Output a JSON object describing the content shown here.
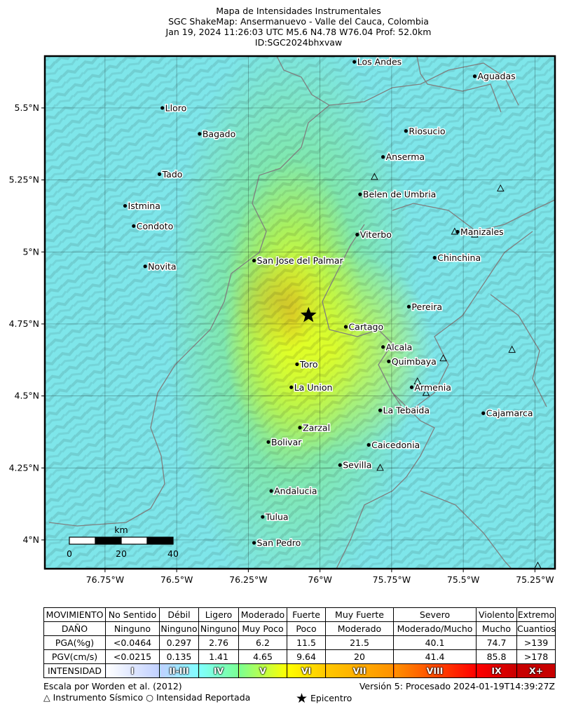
{
  "title": {
    "line1": "Mapa de Intensidades Instrumentales",
    "line2": "SGC ShakeMap: Ansermanuevo - Valle del Cauca, Colombia",
    "line3": "Jan 19, 2024 11:26:03 UTC M5.6 N4.78 W76.04 Prof: 52.0km",
    "line4": "ID:SGC2024bhxvaw"
  },
  "map": {
    "lat_ticks": [
      "5.5°N",
      "5.25°N",
      "5°N",
      "4.75°N",
      "4.5°N",
      "4.25°N",
      "4°N"
    ],
    "lon_ticks": [
      "76.75°W",
      "76.5°W",
      "76.25°W",
      "76°W",
      "75.75°W",
      "75.5°W",
      "75.25°W"
    ],
    "epicenter": {
      "name": "Epicentro",
      "lat": 4.78,
      "lon": -76.04
    },
    "cities": [
      {
        "name": "Los Andes",
        "lat": 5.66,
        "lon": -75.88
      },
      {
        "name": "Aguadas",
        "lat": 5.61,
        "lon": -75.46
      },
      {
        "name": "Lloro",
        "lat": 5.5,
        "lon": -76.55
      },
      {
        "name": "Riosucio",
        "lat": 5.42,
        "lon": -75.7
      },
      {
        "name": "Bagado",
        "lat": 5.41,
        "lon": -76.42
      },
      {
        "name": "Anserma",
        "lat": 5.33,
        "lon": -75.78
      },
      {
        "name": "Tado",
        "lat": 5.27,
        "lon": -76.56
      },
      {
        "name": "Belen de Umbria",
        "lat": 5.2,
        "lon": -75.86
      },
      {
        "name": "Istmina",
        "lat": 5.16,
        "lon": -76.68
      },
      {
        "name": "Condoto",
        "lat": 5.09,
        "lon": -76.65
      },
      {
        "name": "Viterbo",
        "lat": 5.06,
        "lon": -75.87
      },
      {
        "name": "Manizales",
        "lat": 5.07,
        "lon": -75.52
      },
      {
        "name": "Chinchina",
        "lat": 4.98,
        "lon": -75.6
      },
      {
        "name": "San Jose del Palmar",
        "lat": 4.97,
        "lon": -76.23
      },
      {
        "name": "Novita",
        "lat": 4.95,
        "lon": -76.61
      },
      {
        "name": "Pereira",
        "lat": 4.81,
        "lon": -75.69
      },
      {
        "name": "Cartago",
        "lat": 4.74,
        "lon": -75.91
      },
      {
        "name": "Alcala",
        "lat": 4.67,
        "lon": -75.78
      },
      {
        "name": "Quimbaya",
        "lat": 4.62,
        "lon": -75.76
      },
      {
        "name": "Toro",
        "lat": 4.61,
        "lon": -76.08
      },
      {
        "name": "Armenia",
        "lat": 4.53,
        "lon": -75.68
      },
      {
        "name": "La Union",
        "lat": 4.53,
        "lon": -76.1
      },
      {
        "name": "La Tebaida",
        "lat": 4.45,
        "lon": -75.79
      },
      {
        "name": "Cajamarca",
        "lat": 4.44,
        "lon": -75.43
      },
      {
        "name": "Zarzal",
        "lat": 4.39,
        "lon": -76.07
      },
      {
        "name": "Bolivar",
        "lat": 4.34,
        "lon": -76.18
      },
      {
        "name": "Caicedonia",
        "lat": 4.33,
        "lon": -75.83
      },
      {
        "name": "Sevilla",
        "lat": 4.26,
        "lon": -75.93
      },
      {
        "name": "Andalucia",
        "lat": 4.17,
        "lon": -76.17
      },
      {
        "name": "Tulua",
        "lat": 4.08,
        "lon": -76.2
      },
      {
        "name": "San Pedro",
        "lat": 3.99,
        "lon": -76.23
      }
    ],
    "stations": [
      {
        "lat": 5.26,
        "lon": -75.81
      },
      {
        "lat": 5.22,
        "lon": -75.37
      },
      {
        "lat": 5.07,
        "lon": -75.53
      },
      {
        "lat": 5.06,
        "lon": -75.46
      },
      {
        "lat": 4.66,
        "lon": -75.33
      },
      {
        "lat": 4.63,
        "lon": -75.57
      },
      {
        "lat": 4.55,
        "lon": -75.66
      },
      {
        "lat": 4.51,
        "lon": -75.63
      },
      {
        "lat": 4.25,
        "lon": -75.79
      },
      {
        "lat": 3.91,
        "lon": -75.24
      }
    ],
    "scalebar": {
      "unit": "km",
      "labels": [
        "0",
        "20",
        "40"
      ]
    }
  },
  "legend": {
    "row_labels": [
      "MOVIMIENTO",
      "DAÑO",
      "PGA(%g)",
      "PGV(cm/s)",
      "INTENSIDAD"
    ],
    "movimiento": [
      "No Sentido",
      "Débil",
      "Ligero",
      "Moderado",
      "Fuerte",
      "Muy Fuerte",
      "Severo",
      "Violento",
      "Extremo"
    ],
    "dano": [
      "Ninguno",
      "Ninguno",
      "Ninguno",
      "Muy Poco",
      "Poco",
      "Moderado",
      "Moderado/Mucho",
      "Mucho",
      "Cuantioso"
    ],
    "pga": [
      "<0.0464",
      "0.297",
      "2.76",
      "6.2",
      "11.5",
      "21.5",
      "40.1",
      "74.7",
      ">139"
    ],
    "pgv": [
      "<0.0215",
      "0.135",
      "1.41",
      "4.65",
      "9.64",
      "20",
      "41.4",
      "85.8",
      ">178"
    ],
    "intensidad": [
      "I",
      "II-III",
      "IV",
      "V",
      "VI",
      "VII",
      "VIII",
      "IX",
      "X+"
    ],
    "colors": [
      "#ffffff",
      "#c0d0ff",
      "#80ffff",
      "#7aff93",
      "#ffff00",
      "#ffc800",
      "#ff9100",
      "#ff0000",
      "#c80000"
    ]
  },
  "footer": {
    "scale_ref": "Escala por Worden et al. (2012)",
    "version": "Versión 5: Procesado 2024-01-19T14:39:27Z",
    "station_legend": "Instrumento Sísmico",
    "reported_legend": "Intensidad Reportada",
    "epicenter_legend": "Epicentro"
  }
}
